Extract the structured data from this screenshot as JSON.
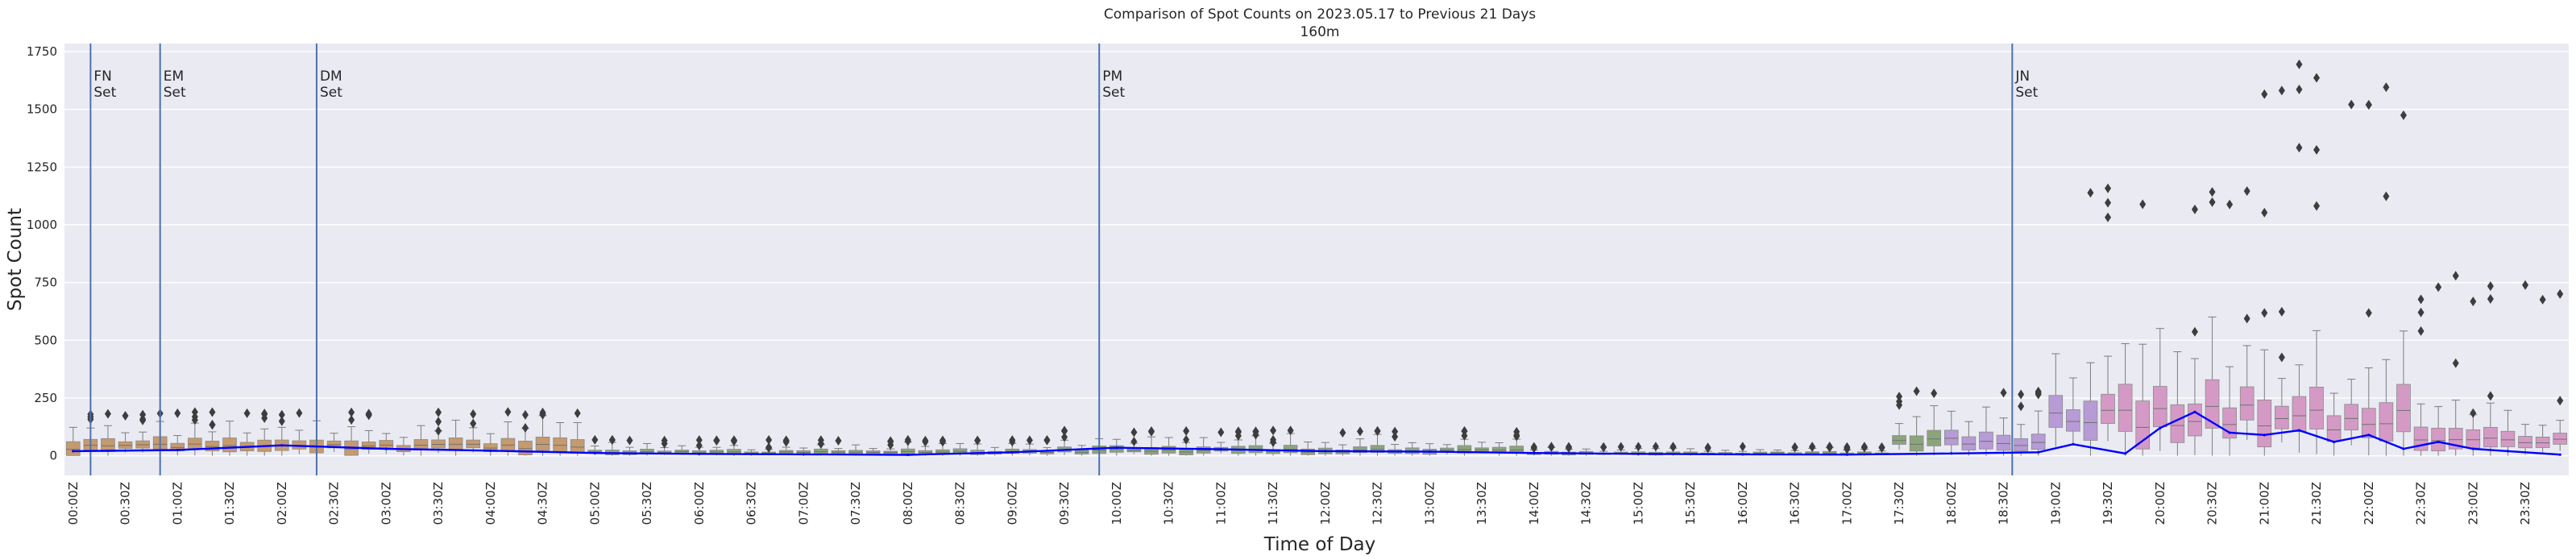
{
  "chart_data": {
    "type": "box",
    "title": "Comparison of Spot Counts on 2023.05.17 to Previous 21 Days",
    "subtitle": "160m",
    "xlabel": "Time of Day",
    "ylabel": "Spot Count",
    "ylim": [
      -85,
      1785
    ],
    "yticks": [
      0,
      250,
      500,
      750,
      1000,
      1250,
      1500,
      1750
    ],
    "xtick_labels": [
      "00:00Z",
      "00:30Z",
      "01:00Z",
      "01:30Z",
      "02:00Z",
      "02:30Z",
      "03:00Z",
      "03:30Z",
      "04:00Z",
      "04:30Z",
      "05:00Z",
      "05:30Z",
      "06:00Z",
      "06:30Z",
      "07:00Z",
      "07:30Z",
      "08:00Z",
      "08:30Z",
      "09:00Z",
      "09:30Z",
      "10:00Z",
      "10:30Z",
      "11:00Z",
      "11:30Z",
      "12:00Z",
      "12:30Z",
      "13:00Z",
      "13:30Z",
      "14:00Z",
      "14:30Z",
      "15:00Z",
      "15:30Z",
      "16:00Z",
      "16:30Z",
      "17:00Z",
      "17:30Z",
      "18:00Z",
      "18:30Z",
      "19:00Z",
      "19:30Z",
      "20:00Z",
      "20:30Z",
      "21:00Z",
      "21:30Z",
      "22:00Z",
      "22:30Z",
      "23:00Z",
      "23:30Z"
    ],
    "bin_minutes": 10,
    "grid": true,
    "colors": {
      "background": "#eaeaf2",
      "grid": "#ffffff",
      "box_tan": "#c59a6f",
      "box_green": "#8ba57a",
      "box_violet": "#b79bd6",
      "box_pink": "#d49ac5",
      "median_line": "#0000ff",
      "event_line": "#4c72b0",
      "outlier": "#3d3d3d"
    },
    "events": [
      {
        "label": "FN\nSet",
        "time": "00:10Z"
      },
      {
        "label": "EM\nSet",
        "time": "00:50Z"
      },
      {
        "label": "DM\nSet",
        "time": "02:20Z"
      },
      {
        "label": "PM\nSet",
        "time": "09:50Z"
      },
      {
        "label": "JN\nSet",
        "time": "18:35Z"
      }
    ],
    "ranges": [
      {
        "from": "00:00Z",
        "to": "04:59Z",
        "median": 40,
        "spread": 45,
        "outlier_top": 190
      },
      {
        "from": "05:00Z",
        "to": "09:29Z",
        "median": 15,
        "spread": 15,
        "outlier_top": 70
      },
      {
        "from": "09:30Z",
        "to": "13:59Z",
        "median": 22,
        "spread": 25,
        "outlier_top": 110
      },
      {
        "from": "14:00Z",
        "to": "17:29Z",
        "median": 10,
        "spread": 10,
        "outlier_top": 40
      },
      {
        "from": "17:30Z",
        "to": "18:59Z",
        "median": 60,
        "spread": 60,
        "outlier_top": 280
      },
      {
        "from": "19:00Z",
        "to": "20:59Z",
        "median": 170,
        "spread": 150,
        "outlier_top": 1160
      },
      {
        "from": "21:00Z",
        "to": "22:29Z",
        "median": 160,
        "spread": 160,
        "outlier_top": 1700
      },
      {
        "from": "22:30Z",
        "to": "23:59Z",
        "median": 60,
        "spread": 75,
        "outlier_top": 780
      }
    ],
    "series": [
      {
        "name": "2023.05.17",
        "times": [
          "00:00Z",
          "01:00Z",
          "02:00Z",
          "03:00Z",
          "04:00Z",
          "05:00Z",
          "06:00Z",
          "07:00Z",
          "08:00Z",
          "09:00Z",
          "10:00Z",
          "11:00Z",
          "12:00Z",
          "13:00Z",
          "14:00Z",
          "15:00Z",
          "16:00Z",
          "17:00Z",
          "18:00Z",
          "18:50Z",
          "19:10Z",
          "19:40Z",
          "20:00Z",
          "20:20Z",
          "20:40Z",
          "21:00Z",
          "21:20Z",
          "21:40Z",
          "22:00Z",
          "22:20Z",
          "22:40Z",
          "23:00Z",
          "23:20Z",
          "23:50Z"
        ],
        "values": [
          20,
          25,
          45,
          30,
          22,
          12,
          8,
          6,
          4,
          15,
          35,
          28,
          20,
          18,
          12,
          8,
          6,
          5,
          10,
          15,
          50,
          10,
          120,
          190,
          100,
          90,
          110,
          60,
          90,
          30,
          60,
          30,
          20,
          5
        ]
      }
    ]
  }
}
